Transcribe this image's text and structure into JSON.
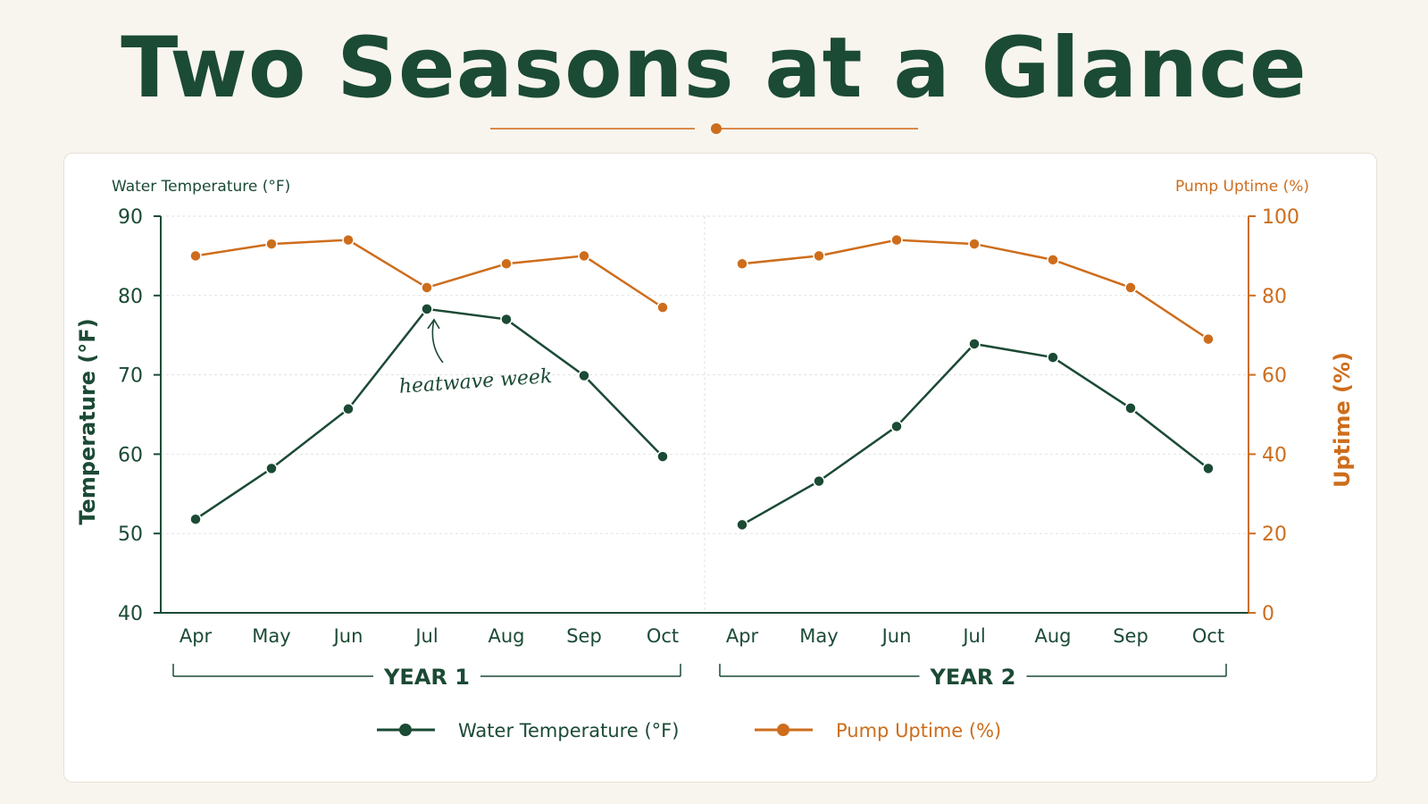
{
  "title": "Two Seasons at a Glance",
  "colors": {
    "temperature": "#1b4a35",
    "uptime": "#cd6d1c",
    "grid": "#e2e2e2",
    "background": "#f8f5ee"
  },
  "chart_data": {
    "type": "line",
    "left_axis_caption": "Water Temperature (°F)",
    "right_axis_caption": "Pump Uptime (%)",
    "ylabel": "Temperature (°F)",
    "y2label": "Uptime (%)",
    "ylim": [
      40,
      90
    ],
    "y2lim": [
      0,
      100
    ],
    "yticks": [
      "90",
      "80",
      "70",
      "60",
      "50",
      "40"
    ],
    "y2ticks": [
      "100",
      "80",
      "60",
      "40",
      "20",
      "0"
    ],
    "grid": true,
    "legend_position": "bottom-center",
    "panels": [
      {
        "group_label": "YEAR 1",
        "categories": [
          "Apr",
          "May",
          "Jun",
          "Jul",
          "Aug",
          "Sep",
          "Oct"
        ],
        "temperature": [
          51.8,
          58.2,
          65.7,
          78.3,
          77.0,
          69.9,
          59.7
        ],
        "uptime": [
          90,
          93,
          94,
          82,
          88,
          90,
          77
        ],
        "annotation": {
          "text": "heatwave week",
          "category": "Jul",
          "series": "temperature"
        }
      },
      {
        "group_label": "YEAR 2",
        "categories": [
          "Apr",
          "May",
          "Jun",
          "Jul",
          "Aug",
          "Sep",
          "Oct"
        ],
        "temperature": [
          51.1,
          56.6,
          63.5,
          73.9,
          72.2,
          65.8,
          58.2
        ],
        "uptime": [
          88,
          90,
          94,
          93,
          89,
          82,
          69
        ],
        "annotation": null
      }
    ],
    "series": [
      {
        "name": "Water Temperature (°F)",
        "key": "temperature",
        "axis": "left"
      },
      {
        "name": "Pump Uptime (%)",
        "key": "uptime",
        "axis": "right"
      }
    ]
  }
}
